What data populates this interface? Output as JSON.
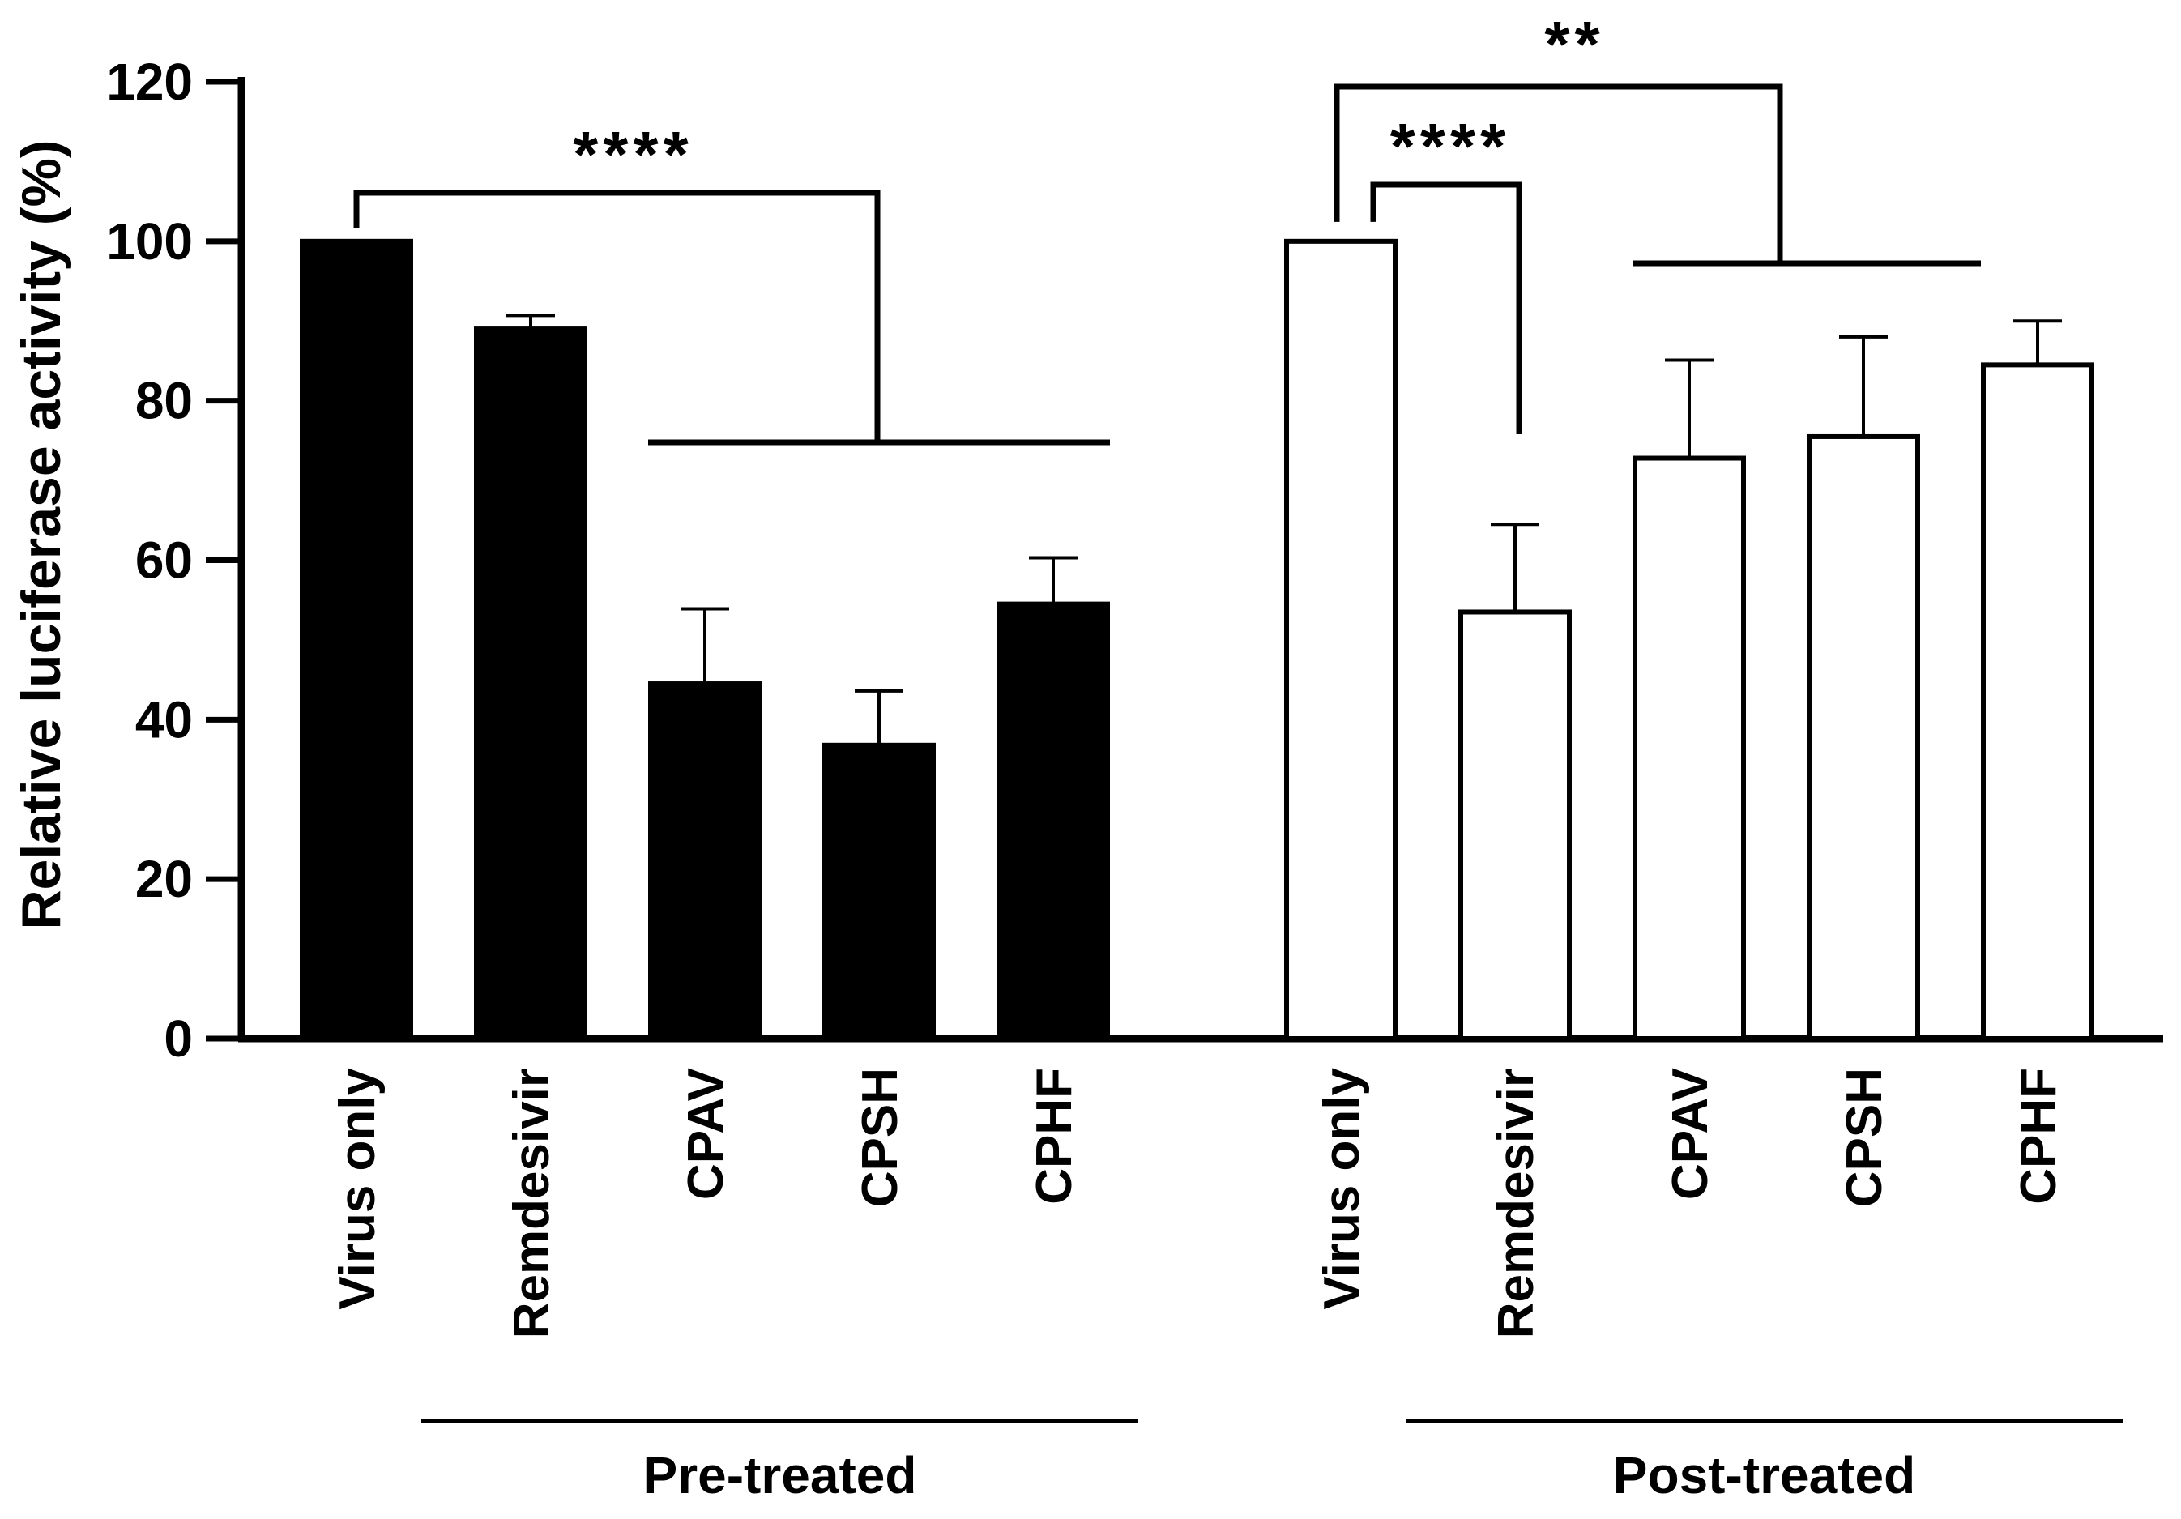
{
  "chart_data": {
    "type": "bar",
    "ylabel": "Relative luciferase activity (%)",
    "xlabel": "",
    "ylim": [
      0,
      120
    ],
    "yticks": [
      0,
      20,
      40,
      60,
      80,
      100,
      120
    ],
    "grid": false,
    "groups": [
      {
        "name": "Pre-treated",
        "fill": "#000000",
        "categories": [
          "Virus only",
          "Remdesivir",
          "CPAV",
          "CPSH",
          "CPHF"
        ],
        "values": [
          100,
          89,
          44.5,
          36.8,
          54.5
        ],
        "errors": [
          0,
          1.7,
          9.4,
          6.8,
          5.8
        ]
      },
      {
        "name": "Post-treated",
        "fill": "#ffffff",
        "categories": [
          "Virus only",
          "Remdesivir",
          "CPAV",
          "CPSH",
          "CPHF"
        ],
        "values": [
          100,
          53.5,
          72.8,
          75.5,
          84.5
        ],
        "errors": [
          0,
          11,
          12.3,
          12.5,
          5.5
        ]
      }
    ],
    "annotations": [
      {
        "group": "Pre-treated",
        "label": "****",
        "compare": "Virus only vs CPAV/CPSH/CPHF"
      },
      {
        "group": "Post-treated",
        "label": "****",
        "compare": "Virus only vs Remdesivir"
      },
      {
        "group": "Post-treated",
        "label": "**",
        "compare": "Virus only vs CPAV/CPSH/CPHF"
      }
    ]
  }
}
